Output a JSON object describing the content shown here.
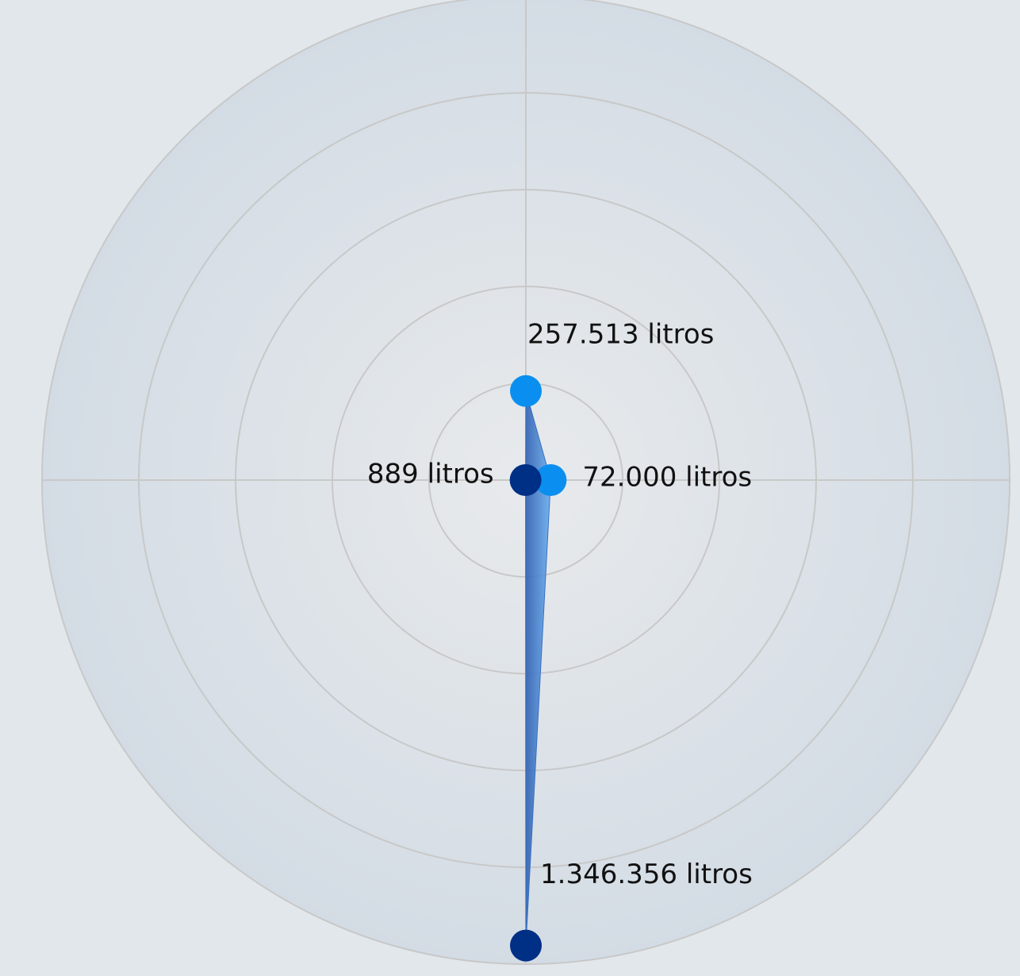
{
  "chart_data": {
    "type": "radar",
    "values": [
      257513,
      72000,
      1346356,
      889
    ],
    "value_labels": [
      "257.513 litros",
      "72.000 litros",
      "1.346.356 litros",
      "889 litros"
    ],
    "colors": [
      "#0a8ff0",
      "#0a8ff0",
      "#002f86",
      "#002f86"
    ],
    "fill": "#4a8fd8",
    "rlim": [
      0,
      1400000
    ],
    "rticks": [
      280000,
      560000,
      840000,
      1120000,
      1400000
    ],
    "grid": true
  }
}
